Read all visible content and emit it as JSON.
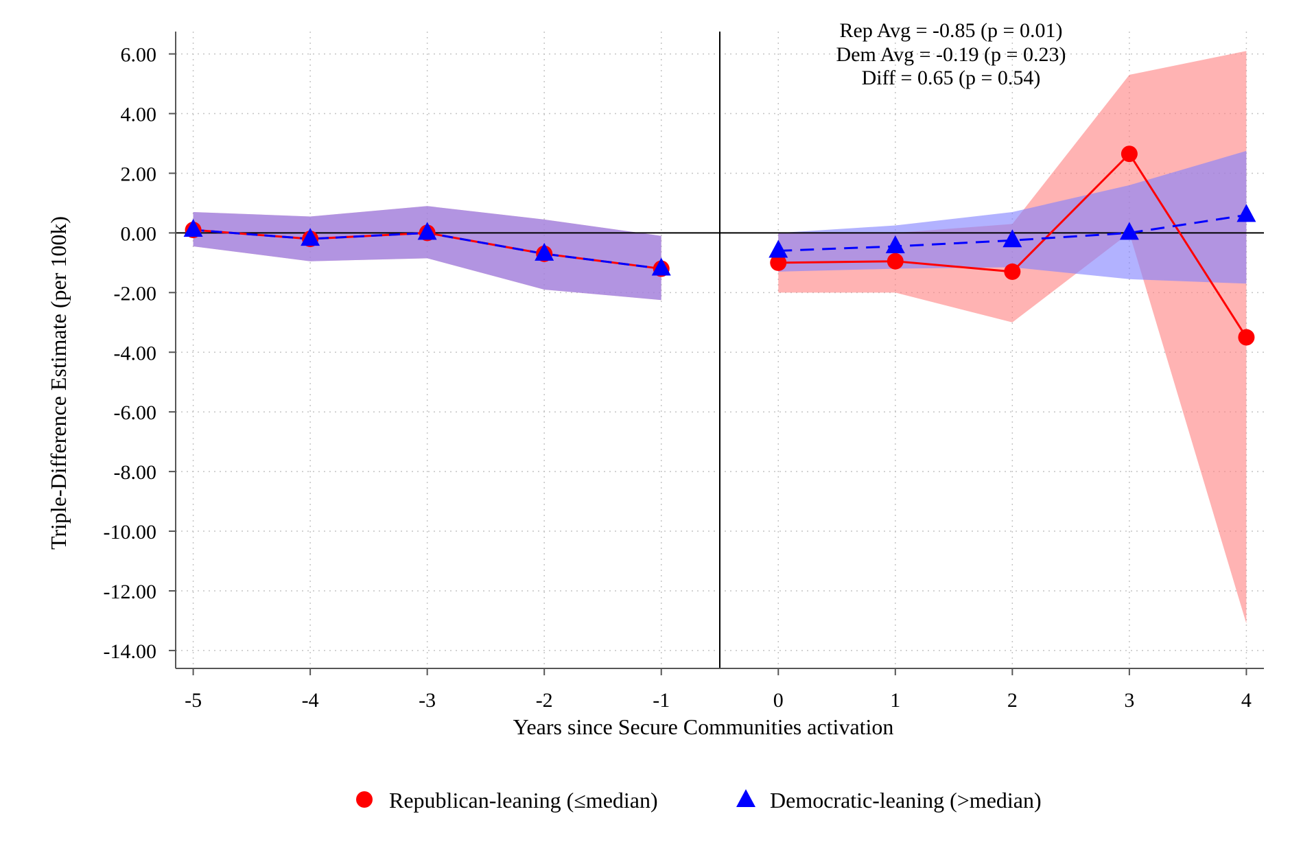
{
  "chart_data": {
    "type": "line",
    "xlabel": "Years since Secure Communities activation",
    "ylabel": "Triple-Difference Estimate (per 100k)",
    "x": [
      -5,
      -4,
      -3,
      -2,
      -1,
      0,
      1,
      2,
      3,
      4
    ],
    "x_tick_labels": [
      "-5",
      "-4",
      "-3",
      "-2",
      "-1",
      "0",
      "1",
      "2",
      "3",
      "4"
    ],
    "xlim": [
      -5.15,
      4.15
    ],
    "ylim": [
      -14.6,
      6.75
    ],
    "y_ticks": [
      6,
      4,
      2,
      0,
      -2,
      -4,
      -6,
      -8,
      -10,
      -12,
      -14
    ],
    "y_tick_labels": [
      "6.00",
      "4.00",
      "2.00",
      "0.00",
      "-2.00",
      "-4.00",
      "-6.00",
      "-8.00",
      "-10.00",
      "-12.00",
      "-14.00"
    ],
    "grid": true,
    "reference_lines": {
      "horizontal_y": 0,
      "vertical_x": -0.5
    },
    "annotations": [
      "Rep Avg = -0.85 (p = 0.01)",
      "Dem Avg = -0.19 (p = 0.23)",
      "Diff = 0.65 (p = 0.54)"
    ],
    "legend_position": "bottom",
    "series": [
      {
        "name": "Republican-leaning (≤median)",
        "color": "#ff0000",
        "band_color": "#f8c8c8",
        "marker": "circle",
        "line_style": "solid",
        "pre_period": {
          "x": [
            -5,
            -4,
            -3,
            -2,
            -1
          ],
          "values": [
            0.1,
            -0.2,
            0.0,
            -0.7,
            -1.2
          ]
        },
        "post_period": {
          "x": [
            0,
            1,
            2,
            3,
            4
          ],
          "values": [
            -1.0,
            -0.95,
            -1.3,
            2.65,
            -3.5
          ],
          "ci_upper": [
            0.0,
            0.0,
            0.3,
            5.3,
            6.1
          ],
          "ci_lower": [
            -2.0,
            -2.0,
            -3.0,
            0.0,
            -13.1
          ]
        }
      },
      {
        "name": "Democratic-leaning (>median)",
        "color": "#0000ff",
        "band_color": "#c8c8f8",
        "marker": "triangle",
        "line_style": "dashed",
        "pre_period": {
          "x": [
            -5,
            -4,
            -3,
            -2,
            -1
          ],
          "values": [
            0.1,
            -0.2,
            0.0,
            -0.7,
            -1.2
          ],
          "ci_upper": [
            0.7,
            0.55,
            0.9,
            0.45,
            -0.1
          ],
          "ci_lower": [
            -0.45,
            -0.95,
            -0.85,
            -1.9,
            -2.25
          ]
        },
        "post_period": {
          "x": [
            0,
            1,
            2,
            3,
            4
          ],
          "values": [
            -0.6,
            -0.45,
            -0.25,
            0.0,
            0.6
          ],
          "ci_upper": [
            0.0,
            0.25,
            0.7,
            1.6,
            2.75
          ],
          "ci_lower": [
            -1.3,
            -1.2,
            -1.15,
            -1.55,
            -1.7
          ]
        }
      }
    ]
  }
}
